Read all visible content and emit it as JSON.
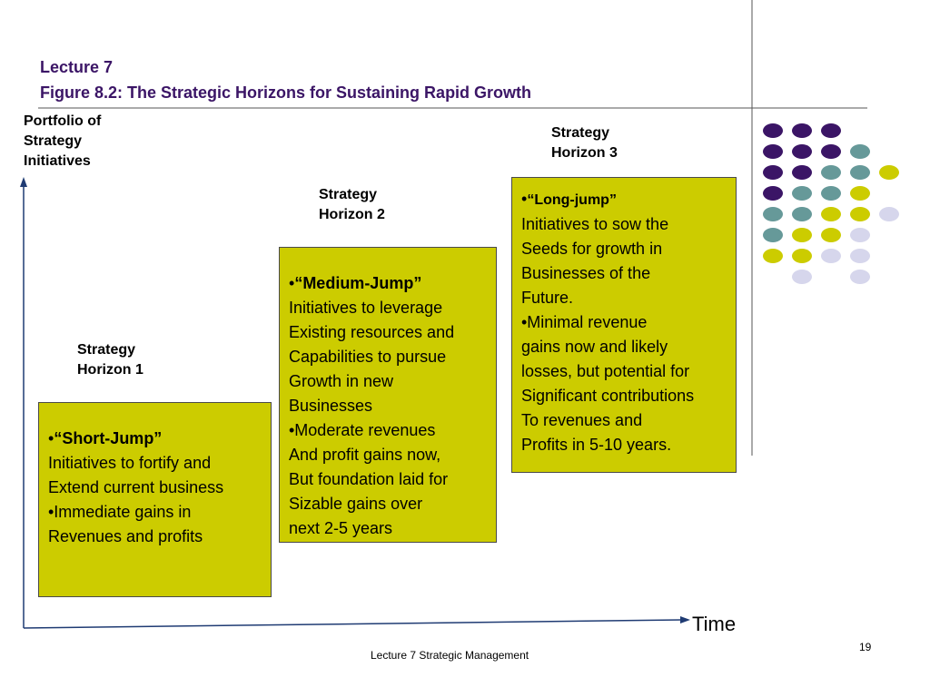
{
  "slide": {
    "lecture": "Lecture 7",
    "figure_title": "Figure 8.2: The Strategic Horizons for Sustaining Rapid Growth",
    "y_axis_label": [
      "Portfolio of",
      "Strategy",
      "Initiatives"
    ],
    "x_axis_label": "Time",
    "footer": "Lecture 7 Strategic Management",
    "page_number": "19"
  },
  "horizons": [
    {
      "label": [
        "Strategy",
        "Horizon 1"
      ],
      "head": "“Short-Jump”",
      "lines": [
        "Initiatives to fortify and",
        "Extend current business",
        "•Immediate gains in",
        "Revenues and profits"
      ]
    },
    {
      "label": [
        "Strategy",
        "Horizon 2"
      ],
      "head": "“Medium-Jump”",
      "lines": [
        "Initiatives to leverage",
        "Existing resources and",
        "Capabilities to pursue",
        "Growth in new",
        "Businesses",
        "•Moderate revenues",
        "And profit gains now,",
        "But foundation laid for",
        "Sizable gains over",
        "next 2-5 years"
      ]
    },
    {
      "label": [
        "Strategy",
        "Horizon 3"
      ],
      "head": "“Long-jump”",
      "lines": [
        "Initiatives to sow the",
        "Seeds for growth in",
        "Businesses of the",
        "Future.",
        "•Minimal revenue",
        "gains now and likely",
        "losses, but potential for",
        "Significant contributions",
        "To revenues and",
        "Profits in 5-10 years."
      ]
    }
  ],
  "colors": {
    "title": "#3b1566",
    "box_fill": "#cccc00",
    "dot_purple": "#3b1566",
    "dot_teal": "#669999",
    "dot_olive": "#cccc00",
    "dot_lavender": "#d6d6ec"
  },
  "dot_grid": [
    [
      "purple",
      "purple",
      "purple",
      "",
      ""
    ],
    [
      "purple",
      "purple",
      "purple",
      "teal",
      ""
    ],
    [
      "purple",
      "purple",
      "teal",
      "teal",
      "olive"
    ],
    [
      "purple",
      "teal",
      "teal",
      "olive",
      ""
    ],
    [
      "teal",
      "teal",
      "olive",
      "olive",
      "lavender"
    ],
    [
      "teal",
      "olive",
      "olive",
      "lavender",
      ""
    ],
    [
      "olive",
      "olive",
      "lavender",
      "lavender",
      ""
    ],
    [
      "",
      "lavender",
      "",
      "lavender",
      ""
    ]
  ]
}
